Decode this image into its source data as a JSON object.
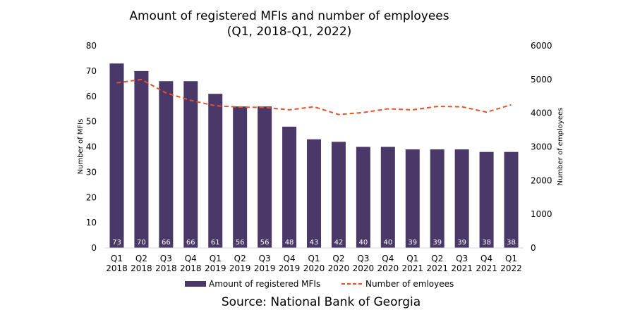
{
  "chart_data": {
    "type": "bar",
    "title": "Amount of registered MFIs and number of employees",
    "subtitle": "(Q1, 2018-Q1, 2022)",
    "categories": [
      [
        "Q1",
        "2018"
      ],
      [
        "Q2",
        "2018"
      ],
      [
        "Q3",
        "2018"
      ],
      [
        "Q4",
        "2018"
      ],
      [
        "Q1",
        "2019"
      ],
      [
        "Q2",
        "2019"
      ],
      [
        "Q3",
        "2019"
      ],
      [
        "Q4",
        "2019"
      ],
      [
        "Q1",
        "2020"
      ],
      [
        "Q2",
        "2020"
      ],
      [
        "Q3",
        "2020"
      ],
      [
        "Q4",
        "2020"
      ],
      [
        "Q1",
        "2021"
      ],
      [
        "Q2",
        "2021"
      ],
      [
        "Q3",
        "2021"
      ],
      [
        "Q4",
        "2021"
      ],
      [
        "Q1",
        "2022"
      ]
    ],
    "series": [
      {
        "name": "Amount of registered MFIs",
        "type": "bar",
        "axis": "left",
        "color": "#4a3868",
        "values": [
          73,
          70,
          66,
          66,
          61,
          56,
          56,
          48,
          43,
          42,
          40,
          40,
          39,
          39,
          39,
          38,
          38
        ]
      },
      {
        "name": "Number of emloyees",
        "type": "line",
        "style": "dashed",
        "axis": "right",
        "color": "#e8502a",
        "values": [
          4900,
          5000,
          4600,
          4380,
          4220,
          4180,
          4170,
          4100,
          4190,
          3960,
          4020,
          4130,
          4100,
          4200,
          4190,
          4030,
          4250
        ]
      }
    ],
    "ylabel": "Number of MFIs",
    "ylim": [
      0,
      80
    ],
    "yticks": [
      0,
      10,
      20,
      30,
      40,
      50,
      60,
      70,
      80
    ],
    "y2label": "Number of employees",
    "y2lim": [
      0,
      6000
    ],
    "y2ticks": [
      0,
      1000,
      2000,
      3000,
      4000,
      5000,
      6000
    ],
    "grid": false,
    "legend_position": "bottom",
    "source": "Source: National Bank of Georgia"
  }
}
